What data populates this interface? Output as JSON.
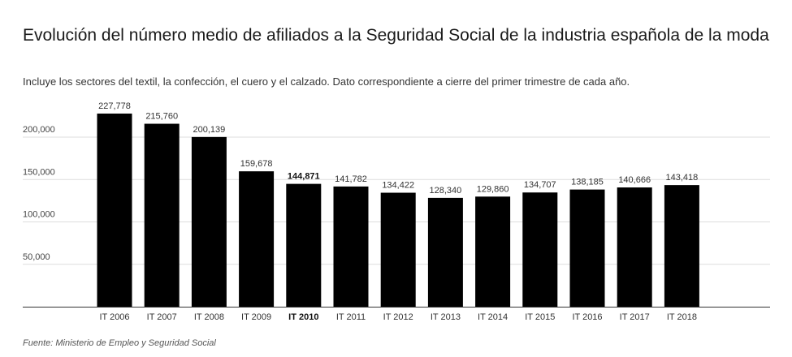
{
  "title": "Evolución del número medio de afiliados a la Seguridad Social de la industria española de la moda",
  "subtitle": "Incluye los sectores del textil, la confección, el cuero y el calzado. Dato correspondiente a cierre del primer trimestre de cada año.",
  "source": "Fuente: Ministerio de Empleo y Seguridad Social",
  "chart_data": {
    "type": "bar",
    "title": "Evolución del número medio de afiliados a la Seguridad Social de la industria española de la moda",
    "subtitle": "Incluye los sectores del textil, la confección, el cuero y el calzado. Dato correspondiente a cierre del primer trimestre de cada año.",
    "xlabel": "",
    "ylabel": "",
    "categories": [
      "IT 2006",
      "IT 2007",
      "IT 2008",
      "IT 2009",
      "IT 2010",
      "IT 2011",
      "IT 2012",
      "IT 2013",
      "IT 2014",
      "IT 2015",
      "IT 2016",
      "IT 2017",
      "IT 2018"
    ],
    "values": [
      227778,
      215760,
      200139,
      159678,
      144871,
      141782,
      134422,
      128340,
      129860,
      134707,
      138185,
      140666,
      143418
    ],
    "value_labels": [
      "227,778",
      "215,760",
      "200,139",
      "159,678",
      "144,871",
      "141,782",
      "134,422",
      "128,340",
      "129,860",
      "134,707",
      "138,185",
      "140,666",
      "143,418"
    ],
    "highlighted_category": "IT 2010",
    "yticks": [
      50000,
      100000,
      150000,
      200000
    ],
    "ytick_labels": [
      "50,000",
      "100,000",
      "150,000",
      "200,000"
    ],
    "ylim": [
      0,
      200000
    ],
    "grid": true,
    "bar_color": "#000000",
    "grid_color": "#dddddd"
  }
}
